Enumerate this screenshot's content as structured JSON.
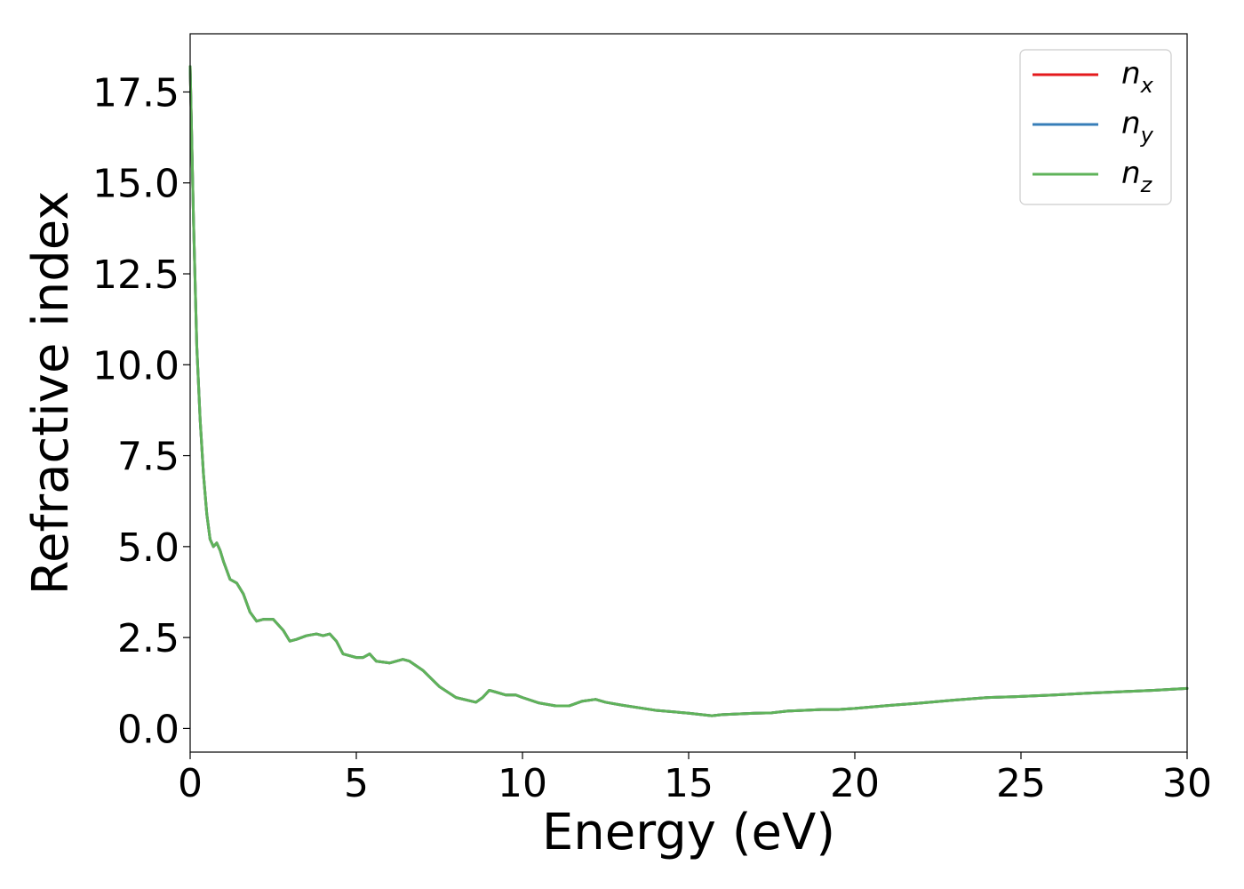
{
  "chart_data": {
    "type": "line",
    "title": "",
    "xlabel": "Energy (eV)",
    "ylabel": "Refractive index",
    "xlim": [
      0,
      30
    ],
    "ylim": [
      -0.65,
      19.1
    ],
    "xticks": [
      0,
      5,
      10,
      15,
      20,
      25,
      30
    ],
    "xtick_labels": [
      "0",
      "5",
      "10",
      "15",
      "20",
      "25",
      "30"
    ],
    "yticks": [
      0.0,
      2.5,
      5.0,
      7.5,
      10.0,
      12.5,
      15.0,
      17.5
    ],
    "ytick_labels": [
      "0.0",
      "2.5",
      "5.0",
      "7.5",
      "10.0",
      "12.5",
      "15.0",
      "17.5"
    ],
    "grid": false,
    "legend_position": "top-right",
    "x": [
      0.0,
      0.1,
      0.2,
      0.3,
      0.4,
      0.5,
      0.6,
      0.7,
      0.8,
      0.9,
      1.0,
      1.2,
      1.4,
      1.6,
      1.8,
      2.0,
      2.2,
      2.5,
      2.8,
      3.0,
      3.2,
      3.5,
      3.8,
      4.0,
      4.2,
      4.4,
      4.6,
      5.0,
      5.2,
      5.4,
      5.6,
      6.0,
      6.4,
      6.6,
      7.0,
      7.5,
      8.0,
      8.6,
      8.8,
      9.0,
      9.2,
      9.5,
      9.8,
      10.0,
      10.5,
      11.0,
      11.4,
      11.8,
      12.2,
      12.5,
      13.0,
      14.0,
      15.0,
      15.7,
      16.0,
      17.0,
      17.5,
      18.0,
      19.0,
      19.5,
      20.0,
      21.0,
      22.0,
      23.0,
      24.0,
      25.0,
      26.0,
      27.0,
      28.0,
      29.0,
      30.0
    ],
    "series": [
      {
        "name": "n_x",
        "label_main": "n",
        "label_sub": "x",
        "color": "#e41a1c",
        "values": [
          18.2,
          14.0,
          10.5,
          8.5,
          7.0,
          5.9,
          5.2,
          5.0,
          5.1,
          4.9,
          4.6,
          4.1,
          4.0,
          3.7,
          3.2,
          2.95,
          3.0,
          3.0,
          2.7,
          2.4,
          2.45,
          2.55,
          2.6,
          2.55,
          2.6,
          2.4,
          2.05,
          1.95,
          1.95,
          2.05,
          1.85,
          1.8,
          1.9,
          1.85,
          1.6,
          1.15,
          0.85,
          0.72,
          0.85,
          1.05,
          1.0,
          0.92,
          0.92,
          0.85,
          0.7,
          0.62,
          0.62,
          0.75,
          0.8,
          0.72,
          0.64,
          0.5,
          0.42,
          0.35,
          0.38,
          0.42,
          0.43,
          0.48,
          0.52,
          0.52,
          0.55,
          0.63,
          0.7,
          0.78,
          0.85,
          0.88,
          0.92,
          0.97,
          1.01,
          1.05,
          1.1
        ]
      },
      {
        "name": "n_y",
        "label_main": "n",
        "label_sub": "y",
        "color": "#377eb8",
        "values": [
          18.2,
          14.0,
          10.5,
          8.5,
          7.0,
          5.9,
          5.2,
          5.0,
          5.1,
          4.9,
          4.6,
          4.1,
          4.0,
          3.7,
          3.2,
          2.95,
          3.0,
          3.0,
          2.7,
          2.4,
          2.45,
          2.55,
          2.6,
          2.55,
          2.6,
          2.4,
          2.05,
          1.95,
          1.95,
          2.05,
          1.85,
          1.8,
          1.9,
          1.85,
          1.6,
          1.15,
          0.85,
          0.72,
          0.85,
          1.05,
          1.0,
          0.92,
          0.92,
          0.85,
          0.7,
          0.62,
          0.62,
          0.75,
          0.8,
          0.72,
          0.64,
          0.5,
          0.42,
          0.35,
          0.38,
          0.42,
          0.43,
          0.48,
          0.52,
          0.52,
          0.55,
          0.63,
          0.7,
          0.78,
          0.85,
          0.88,
          0.92,
          0.97,
          1.01,
          1.05,
          1.1
        ]
      },
      {
        "name": "n_z",
        "label_main": "n",
        "label_sub": "z",
        "color": "#5fb35a",
        "values": [
          18.2,
          14.0,
          10.5,
          8.5,
          7.0,
          5.9,
          5.2,
          5.0,
          5.1,
          4.9,
          4.6,
          4.1,
          4.0,
          3.7,
          3.2,
          2.95,
          3.0,
          3.0,
          2.7,
          2.4,
          2.45,
          2.55,
          2.6,
          2.55,
          2.6,
          2.4,
          2.05,
          1.95,
          1.95,
          2.05,
          1.85,
          1.8,
          1.9,
          1.85,
          1.6,
          1.15,
          0.85,
          0.72,
          0.85,
          1.05,
          1.0,
          0.92,
          0.92,
          0.85,
          0.7,
          0.62,
          0.62,
          0.75,
          0.8,
          0.72,
          0.64,
          0.5,
          0.42,
          0.35,
          0.38,
          0.42,
          0.43,
          0.48,
          0.52,
          0.52,
          0.55,
          0.63,
          0.7,
          0.78,
          0.85,
          0.88,
          0.92,
          0.97,
          1.01,
          1.05,
          1.1
        ]
      }
    ]
  }
}
